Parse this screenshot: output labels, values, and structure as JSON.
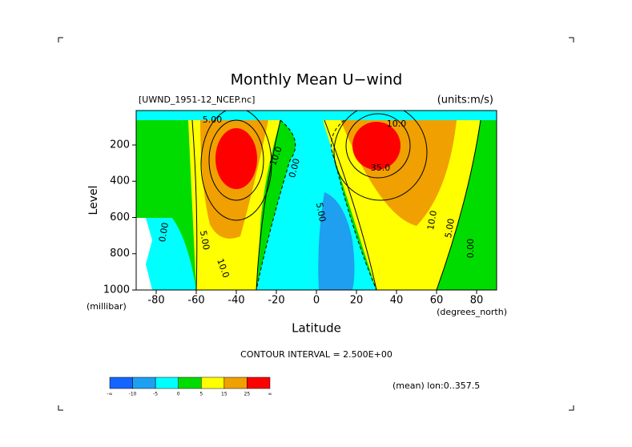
{
  "chart_data": {
    "type": "contour",
    "title": "Monthly Mean U−wind",
    "subtitle_left": "[UWND_1951-12_NCEP.nc]",
    "subtitle_right": "(units:m/s)",
    "x_label": "Latitude",
    "x_units": "(degrees_north)",
    "y_label": "Level",
    "y_units": "(millibar)",
    "xlim": [
      -90,
      90
    ],
    "xticks": [
      -80,
      -60,
      -40,
      -20,
      0,
      20,
      40,
      60,
      80
    ],
    "ylim": [
      1000,
      10
    ],
    "yticks": [
      200,
      400,
      600,
      800,
      1000
    ],
    "footer": "CONTOUR INTERVAL = 2.500E+00",
    "annotation": "(mean) lon:0..357.5",
    "colorbar": {
      "colors": [
        "#1464ff",
        "#1ea0f0",
        "#00ffff",
        "#00dc00",
        "#ffff00",
        "#f0a000",
        "#ff0000"
      ],
      "bounds": [
        "-∞",
        -10,
        -5,
        0,
        5,
        15,
        25,
        "∞"
      ]
    },
    "contour_labels": {
      "values": [
        5,
        10,
        0,
        5,
        10,
        0,
        10,
        35,
        5,
        10,
        5,
        0
      ],
      "value_labels": [
        "5.00",
        "10.0",
        "0.00",
        "5.00",
        "10.0",
        "0.00",
        "10.0",
        "35.0",
        "5.00",
        "10.0",
        "5.00",
        "0.00"
      ]
    }
  }
}
